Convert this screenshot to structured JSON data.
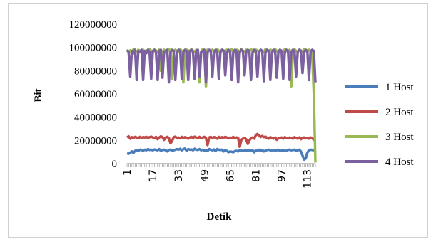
{
  "chart_data": {
    "type": "line",
    "title": "",
    "xlabel": "Detik",
    "ylabel": "Bit",
    "ylim": [
      0,
      120000000
    ],
    "yticks": [
      "0",
      "20000000",
      "40000000",
      "60000000",
      "80000000",
      "100000000",
      "120000000"
    ],
    "xticks": [
      "1",
      "17",
      "33",
      "49",
      "65",
      "81",
      "97",
      "113"
    ],
    "xrange": [
      1,
      118
    ],
    "legend_position": "right",
    "grid": false,
    "series": [
      {
        "name": "1 Host",
        "color": "#4a7ebb",
        "values": [
          9000000,
          8500000,
          9500000,
          10500000,
          9200000,
          11000000,
          11500000,
          11000000,
          12000000,
          11800000,
          11200000,
          12000000,
          11500000,
          12500000,
          11800000,
          12000000,
          11500000,
          12200000,
          11800000,
          11500000,
          12500000,
          11000000,
          11800000,
          12000000,
          11500000,
          10500000,
          11800000,
          12000000,
          11200000,
          11500000,
          12000000,
          12500000,
          12000000,
          12800000,
          11500000,
          12500000,
          13000000,
          11000000,
          12500000,
          12000000,
          12200000,
          11500000,
          12800000,
          12000000,
          11800000,
          12500000,
          11500000,
          12000000,
          11200000,
          11800000,
          10800000,
          12500000,
          12000000,
          11500000,
          12200000,
          10800000,
          12500000,
          12000000,
          11800000,
          12000000,
          10500000,
          11500000,
          11000000,
          9800000,
          10500000,
          10200000,
          9800000,
          10800000,
          11000000,
          10500000,
          11500000,
          11200000,
          10800000,
          11200000,
          11500000,
          10800000,
          11800000,
          11000000,
          11500000,
          9800000,
          11500000,
          10800000,
          12000000,
          11000000,
          11800000,
          10500000,
          11200000,
          11800000,
          12000000,
          11500000,
          11000000,
          11800000,
          11200000,
          11500000,
          12000000,
          10800000,
          11200000,
          11500000,
          10800000,
          11200000,
          11800000,
          12000000,
          11500000,
          11800000,
          12000000,
          11000000,
          11500000,
          12000000,
          10500000,
          7000000,
          3500000,
          4500000,
          9500000,
          11500000,
          12000000,
          11800000,
          11500000,
          11800000
        ]
      },
      {
        "name": "2 Host",
        "color": "#be4b48",
        "values": [
          22500000,
          23500000,
          21500000,
          22800000,
          22000000,
          23000000,
          22500000,
          21800000,
          23000000,
          22200000,
          22800000,
          22500000,
          23000000,
          22000000,
          22800000,
          23200000,
          22500000,
          22000000,
          23000000,
          21000000,
          22500000,
          23500000,
          22800000,
          20500000,
          22500000,
          23000000,
          22000000,
          17500000,
          19500000,
          22800000,
          23200000,
          22000000,
          22500000,
          21800000,
          23000000,
          22000000,
          22800000,
          22200000,
          21500000,
          22500000,
          23000000,
          22000000,
          23200000,
          22500000,
          22000000,
          23000000,
          21800000,
          22500000,
          23000000,
          22200000,
          16000000,
          22500000,
          23000000,
          22000000,
          22800000,
          22500000,
          21500000,
          23000000,
          22000000,
          22800000,
          22200000,
          23000000,
          22500000,
          21800000,
          22500000,
          22000000,
          23000000,
          21800000,
          22500000,
          22200000,
          14500000,
          20500000,
          21500000,
          22000000,
          21000000,
          17000000,
          20000000,
          22000000,
          22500000,
          21500000,
          24500000,
          25500000,
          24000000,
          23000000,
          23800000,
          22800000,
          23200000,
          22000000,
          21500000,
          22800000,
          22000000,
          21500000,
          22500000,
          20500000,
          21800000,
          22000000,
          22500000,
          21500000,
          22800000,
          22000000,
          21800000,
          22500000,
          22000000,
          21500000,
          22800000,
          22000000,
          21500000,
          22500000,
          21000000,
          22200000,
          22500000,
          21800000,
          22000000,
          21500000,
          22500000,
          22000000,
          20500000,
          21800000
        ]
      },
      {
        "name": "3 Host",
        "color": "#98b954",
        "values": [
          98000000,
          96000000,
          97500000,
          95000000,
          98500000,
          97000000,
          96500000,
          98000000,
          97000000,
          95500000,
          98000000,
          96000000,
          97500000,
          96500000,
          98500000,
          97000000,
          96000000,
          98000000,
          97500000,
          96500000,
          98000000,
          80000000,
          96500000,
          98000000,
          97000000,
          96000000,
          98500000,
          97000000,
          73000000,
          96500000,
          98000000,
          97000000,
          96000000,
          98500000,
          97000000,
          70000000,
          96500000,
          98000000,
          97500000,
          96000000,
          98500000,
          97000000,
          96500000,
          98000000,
          97000000,
          70000000,
          96000000,
          98500000,
          97000000,
          66000000,
          98000000,
          97500000,
          96500000,
          98000000,
          97000000,
          96500000,
          98500000,
          97000000,
          96000000,
          98000000,
          97500000,
          96500000,
          98000000,
          97000000,
          96000000,
          98500000,
          97000000,
          96500000,
          98000000,
          97500000,
          96000000,
          98500000,
          97000000,
          96500000,
          98000000,
          97000000,
          96500000,
          98500000,
          97000000,
          96000000,
          98000000,
          97500000,
          96500000,
          98000000,
          97000000,
          96000000,
          98500000,
          97000000,
          96500000,
          98000000,
          97500000,
          96000000,
          98500000,
          97000000,
          96500000,
          98000000,
          97000000,
          96000000,
          98500000,
          97000000,
          96500000,
          98000000,
          66000000,
          96000000,
          98500000,
          97000000,
          96500000,
          98000000,
          97500000,
          96000000,
          98500000,
          97000000,
          96500000,
          98000000,
          97000000,
          96000000,
          60000000,
          1000000
        ]
      },
      {
        "name": "4 Host",
        "color": "#7d60a0",
        "values": [
          98000000,
          96000000,
          75000000,
          97000000,
          95000000,
          98000000,
          72000000,
          97000000,
          96000000,
          98000000,
          72000000,
          97000000,
          95000000,
          98000000,
          96000000,
          73000000,
          97000000,
          98000000,
          96000000,
          72000000,
          97000000,
          98000000,
          74000000,
          96000000,
          97000000,
          98000000,
          70000000,
          96000000,
          98000000,
          97000000,
          72000000,
          96000000,
          98000000,
          97000000,
          73000000,
          96000000,
          98000000,
          97000000,
          72000000,
          97000000,
          98000000,
          96000000,
          73000000,
          97000000,
          98000000,
          75000000,
          96000000,
          97000000,
          98000000,
          70000000,
          96000000,
          98000000,
          97000000,
          75000000,
          96000000,
          98000000,
          97000000,
          73000000,
          96000000,
          98000000,
          97000000,
          76000000,
          96000000,
          98000000,
          97000000,
          72000000,
          96000000,
          98000000,
          97000000,
          70000000,
          96000000,
          98000000,
          97000000,
          76000000,
          96000000,
          98000000,
          97000000,
          72000000,
          96000000,
          98000000,
          97000000,
          75000000,
          96000000,
          98000000,
          97000000,
          71000000,
          96000000,
          98000000,
          97000000,
          72000000,
          96000000,
          98000000,
          97000000,
          74000000,
          96000000,
          98000000,
          97000000,
          73000000,
          96000000,
          98000000,
          97000000,
          72000000,
          96000000,
          98000000,
          97000000,
          75000000,
          96000000,
          98000000,
          97000000,
          78000000,
          96000000,
          98000000,
          97000000,
          72000000,
          96000000,
          98000000,
          97000000,
          70000000
        ]
      }
    ]
  }
}
